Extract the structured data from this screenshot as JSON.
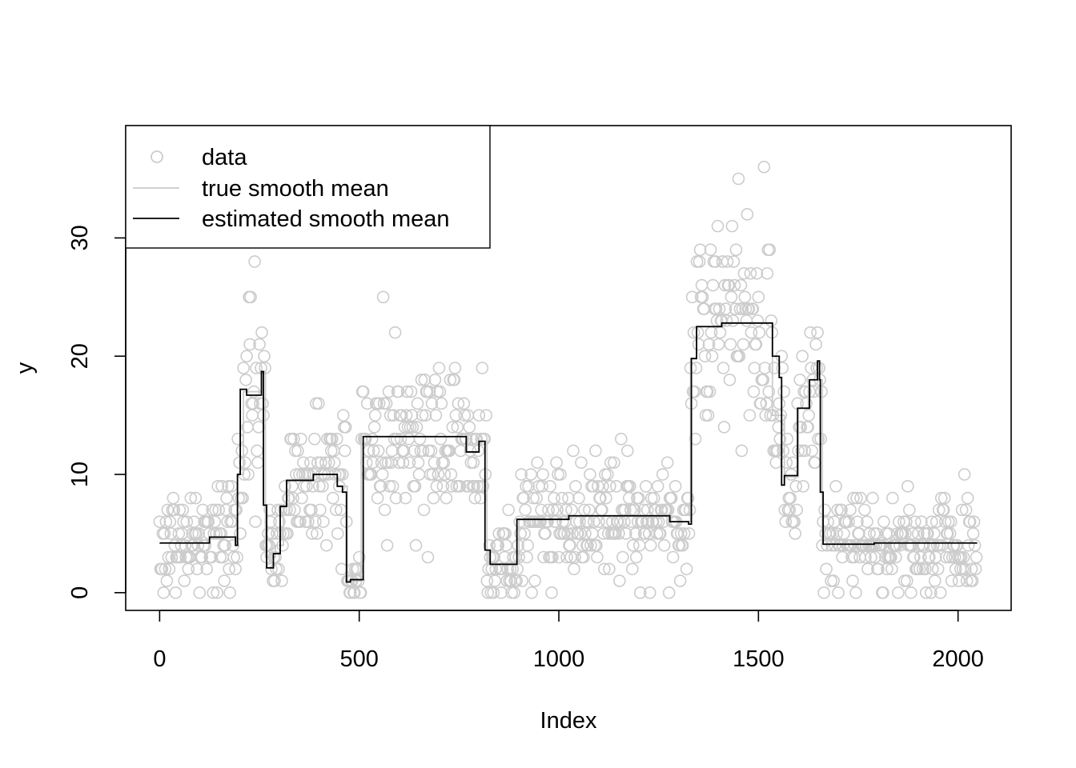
{
  "chart_data": {
    "type": "scatter",
    "title": "",
    "xlabel": "Index",
    "ylabel": "y",
    "xlim": [
      -85,
      2133
    ],
    "ylim": [
      -1.5,
      39.5
    ],
    "x_ticks": [
      0,
      500,
      1000,
      1500,
      2000
    ],
    "y_ticks": [
      0,
      10,
      20,
      30
    ],
    "grid": false,
    "legend_position": "top-left",
    "legend": [
      {
        "label": "data",
        "symbol": "circle",
        "color": "#cccccc"
      },
      {
        "label": "true smooth mean",
        "symbol": "line",
        "color": "#cccccc"
      },
      {
        "label": "estimated smooth mean",
        "symbol": "line",
        "color": "#000000"
      }
    ],
    "colors": {
      "data": "#cccccc",
      "true_mean": "#cccccc",
      "estimated_mean": "#000000"
    },
    "n_points": 2048,
    "data_segments": [
      {
        "start": 0,
        "end": 125,
        "level": 4.2,
        "spread": 2.3
      },
      {
        "start": 125,
        "end": 195,
        "level": 4.7,
        "spread": 2.4
      },
      {
        "start": 195,
        "end": 210,
        "level": 10.0,
        "spread": 3.5
      },
      {
        "start": 210,
        "end": 255,
        "level": 17.0,
        "spread": 4.5
      },
      {
        "start": 255,
        "end": 265,
        "level": 18.7,
        "spread": 4.5
      },
      {
        "start": 265,
        "end": 290,
        "level": 3.0,
        "spread": 2.0
      },
      {
        "start": 290,
        "end": 310,
        "level": 4.0,
        "spread": 2.2
      },
      {
        "start": 310,
        "end": 325,
        "level": 7.3,
        "spread": 3.0
      },
      {
        "start": 325,
        "end": 385,
        "level": 9.5,
        "spread": 3.0
      },
      {
        "start": 385,
        "end": 445,
        "level": 10.0,
        "spread": 3.0
      },
      {
        "start": 445,
        "end": 470,
        "level": 9.0,
        "spread": 3.0
      },
      {
        "start": 470,
        "end": 505,
        "level": 1.0,
        "spread": 1.0
      },
      {
        "start": 505,
        "end": 770,
        "level": 13.2,
        "spread": 3.6
      },
      {
        "start": 770,
        "end": 800,
        "level": 11.9,
        "spread": 3.3
      },
      {
        "start": 800,
        "end": 820,
        "level": 12.8,
        "spread": 3.5
      },
      {
        "start": 820,
        "end": 900,
        "level": 2.4,
        "spread": 1.8
      },
      {
        "start": 900,
        "end": 1030,
        "level": 6.2,
        "spread": 2.5
      },
      {
        "start": 1030,
        "end": 1280,
        "level": 6.5,
        "spread": 2.5
      },
      {
        "start": 1280,
        "end": 1330,
        "level": 6.0,
        "spread": 2.5
      },
      {
        "start": 1330,
        "end": 1345,
        "level": 19.8,
        "spread": 4.5
      },
      {
        "start": 1345,
        "end": 1410,
        "level": 22.5,
        "spread": 4.8
      },
      {
        "start": 1410,
        "end": 1535,
        "level": 22.8,
        "spread": 4.8
      },
      {
        "start": 1535,
        "end": 1565,
        "level": 15.0,
        "spread": 4.0
      },
      {
        "start": 1565,
        "end": 1600,
        "level": 9.8,
        "spread": 3.0
      },
      {
        "start": 1600,
        "end": 1625,
        "level": 15.6,
        "spread": 3.8
      },
      {
        "start": 1625,
        "end": 1660,
        "level": 18.0,
        "spread": 4.2
      },
      {
        "start": 1660,
        "end": 1790,
        "level": 4.1,
        "spread": 2.1
      },
      {
        "start": 1790,
        "end": 2048,
        "level": 4.2,
        "spread": 2.1
      }
    ],
    "estimated_smooth_mean": [
      {
        "x": 0,
        "y": 4.2
      },
      {
        "x": 125,
        "y": 4.2
      },
      {
        "x": 125,
        "y": 4.7
      },
      {
        "x": 190,
        "y": 4.7
      },
      {
        "x": 190,
        "y": 4.0
      },
      {
        "x": 195,
        "y": 4.0
      },
      {
        "x": 195,
        "y": 10.0
      },
      {
        "x": 202,
        "y": 10.0
      },
      {
        "x": 202,
        "y": 17.2
      },
      {
        "x": 218,
        "y": 17.2
      },
      {
        "x": 218,
        "y": 16.7
      },
      {
        "x": 255,
        "y": 16.7
      },
      {
        "x": 255,
        "y": 18.7
      },
      {
        "x": 260,
        "y": 18.7
      },
      {
        "x": 260,
        "y": 7.4
      },
      {
        "x": 268,
        "y": 7.4
      },
      {
        "x": 268,
        "y": 2.1
      },
      {
        "x": 285,
        "y": 2.1
      },
      {
        "x": 285,
        "y": 3.3
      },
      {
        "x": 302,
        "y": 3.3
      },
      {
        "x": 302,
        "y": 7.3
      },
      {
        "x": 318,
        "y": 7.3
      },
      {
        "x": 318,
        "y": 9.5
      },
      {
        "x": 385,
        "y": 9.5
      },
      {
        "x": 385,
        "y": 10.0
      },
      {
        "x": 445,
        "y": 10.0
      },
      {
        "x": 445,
        "y": 9.0
      },
      {
        "x": 458,
        "y": 9.0
      },
      {
        "x": 458,
        "y": 8.5
      },
      {
        "x": 468,
        "y": 8.5
      },
      {
        "x": 468,
        "y": 0.9
      },
      {
        "x": 478,
        "y": 0.9
      },
      {
        "x": 478,
        "y": 1.1
      },
      {
        "x": 510,
        "y": 1.1
      },
      {
        "x": 510,
        "y": 13.2
      },
      {
        "x": 768,
        "y": 13.2
      },
      {
        "x": 768,
        "y": 11.9
      },
      {
        "x": 800,
        "y": 11.9
      },
      {
        "x": 800,
        "y": 12.8
      },
      {
        "x": 815,
        "y": 12.8
      },
      {
        "x": 815,
        "y": 3.6
      },
      {
        "x": 828,
        "y": 3.6
      },
      {
        "x": 828,
        "y": 2.4
      },
      {
        "x": 895,
        "y": 2.4
      },
      {
        "x": 895,
        "y": 6.2
      },
      {
        "x": 1025,
        "y": 6.2
      },
      {
        "x": 1025,
        "y": 6.5
      },
      {
        "x": 1278,
        "y": 6.5
      },
      {
        "x": 1278,
        "y": 6.0
      },
      {
        "x": 1325,
        "y": 6.0
      },
      {
        "x": 1325,
        "y": 5.8
      },
      {
        "x": 1332,
        "y": 5.8
      },
      {
        "x": 1332,
        "y": 19.8
      },
      {
        "x": 1345,
        "y": 19.8
      },
      {
        "x": 1345,
        "y": 22.5
      },
      {
        "x": 1408,
        "y": 22.5
      },
      {
        "x": 1408,
        "y": 22.8
      },
      {
        "x": 1535,
        "y": 22.8
      },
      {
        "x": 1535,
        "y": 20.0
      },
      {
        "x": 1552,
        "y": 20.0
      },
      {
        "x": 1552,
        "y": 18.2
      },
      {
        "x": 1558,
        "y": 18.2
      },
      {
        "x": 1558,
        "y": 9.1
      },
      {
        "x": 1565,
        "y": 9.1
      },
      {
        "x": 1565,
        "y": 9.9
      },
      {
        "x": 1598,
        "y": 9.9
      },
      {
        "x": 1598,
        "y": 15.6
      },
      {
        "x": 1628,
        "y": 15.6
      },
      {
        "x": 1628,
        "y": 18.0
      },
      {
        "x": 1648,
        "y": 18.0
      },
      {
        "x": 1648,
        "y": 19.6
      },
      {
        "x": 1653,
        "y": 19.6
      },
      {
        "x": 1653,
        "y": 18.0
      },
      {
        "x": 1655,
        "y": 18.0
      },
      {
        "x": 1655,
        "y": 8.5
      },
      {
        "x": 1662,
        "y": 8.5
      },
      {
        "x": 1662,
        "y": 4.1
      },
      {
        "x": 1790,
        "y": 4.1
      },
      {
        "x": 1790,
        "y": 4.2
      },
      {
        "x": 2048,
        "y": 4.2
      }
    ]
  }
}
